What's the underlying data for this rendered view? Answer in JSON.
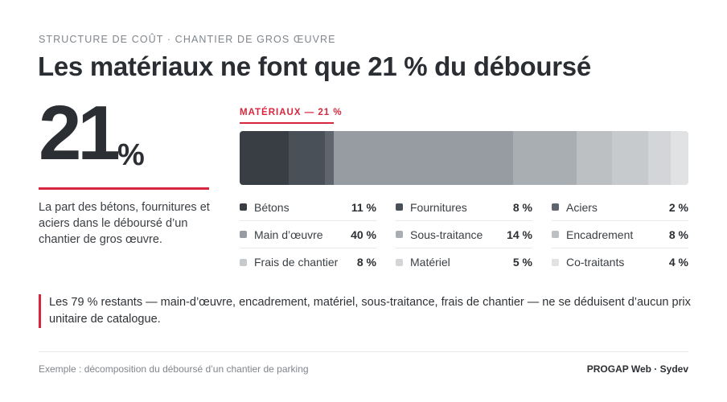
{
  "header": {
    "eyebrow": "STRUCTURE DE COÛT · CHANTIER DE GROS ŒUVRE",
    "title": "Les matériaux ne font que 21 % du déboursé"
  },
  "kpi": {
    "value": "21",
    "unit": "%",
    "description": "La part des bétons, fournitures et aciers dans le déboursé d’un chantier de gros œuvre."
  },
  "note": "Les 79 % restants — main-d’œuvre, encadrement, matériel, sous-traitance, frais de chantier — ne se déduisent d’aucun prix unitaire de catalogue.",
  "footer": {
    "left": "Exemple : décomposition du déboursé d’un chantier de parking",
    "right": "PROGAP Web · Sydev"
  },
  "colors": {
    "accent": "#d7263d"
  },
  "chart_data": {
    "type": "bar",
    "orientation": "horizontal-stacked-100",
    "group_label": "MATÉRIAUX — 21 %",
    "unit": "%",
    "series": [
      {
        "name": "Bétons",
        "value": 11,
        "label": "11 %",
        "color": "#393e45"
      },
      {
        "name": "Fournitures",
        "value": 8,
        "label": "8 %",
        "color": "#4a5058"
      },
      {
        "name": "Aciers",
        "value": 2,
        "label": "2 %",
        "color": "#5f656d"
      },
      {
        "name": "Main d’œuvre",
        "value": 40,
        "label": "40 %",
        "color": "#969ca2"
      },
      {
        "name": "Sous-traitance",
        "value": 14,
        "label": "14 %",
        "color": "#a9aeb2"
      },
      {
        "name": "Encadrement",
        "value": 8,
        "label": "8 %",
        "color": "#bcc0c3"
      },
      {
        "name": "Frais de chantier",
        "value": 8,
        "label": "8 %",
        "color": "#c7cacd"
      },
      {
        "name": "Matériel",
        "value": 5,
        "label": "5 %",
        "color": "#d3d5d8"
      },
      {
        "name": "Co-traitants",
        "value": 4,
        "label": "4 %",
        "color": "#e0e2e4"
      }
    ]
  }
}
